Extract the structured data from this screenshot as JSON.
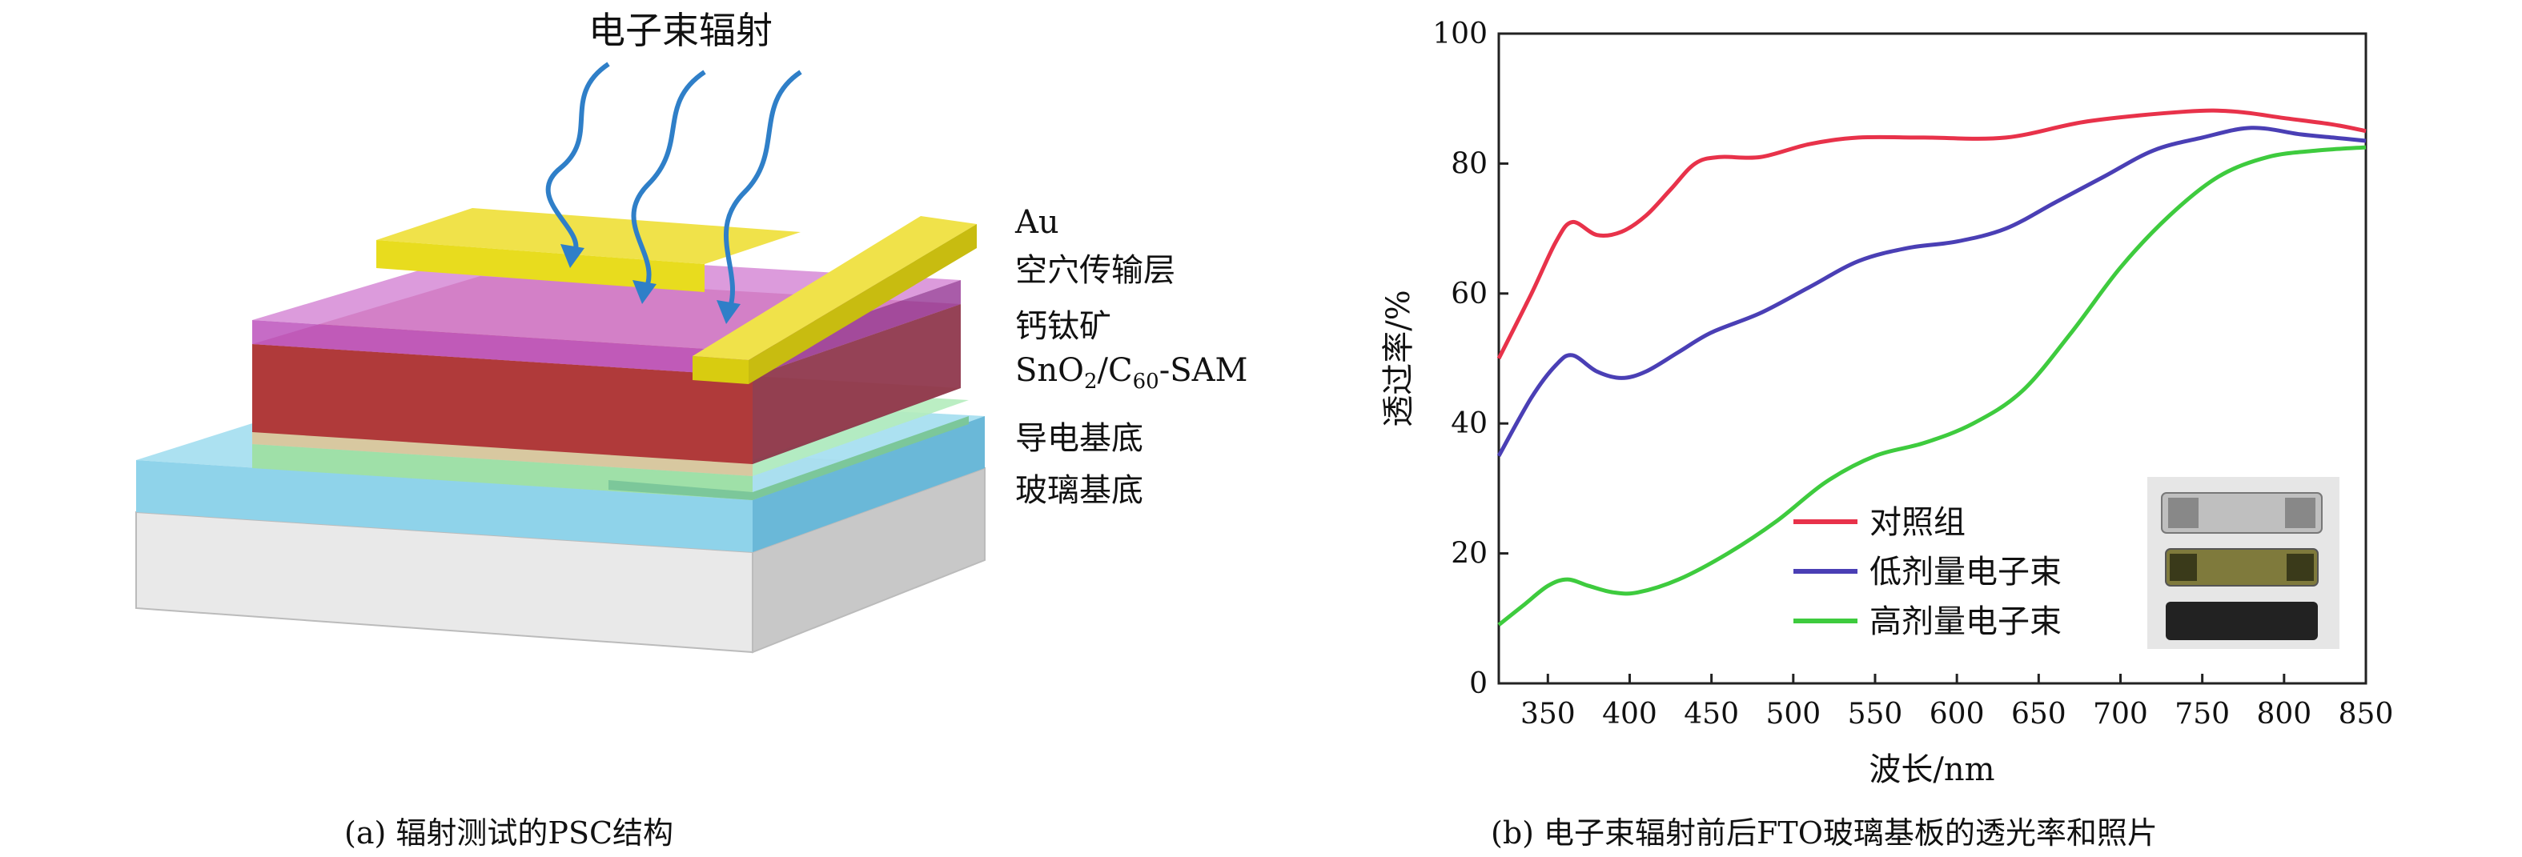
{
  "figure": {
    "left": {
      "irradiation_label": "电子束辐射",
      "layers": [
        {
          "label": "Au",
          "color": "#e8dc1e"
        },
        {
          "label": "空穴传输层",
          "color": "#c46cc8"
        },
        {
          "label": "钙钛矿",
          "color": "#a03a3a"
        },
        {
          "label_parts": [
            "SnO",
            "2",
            "/C",
            "60",
            "-SAM"
          ],
          "color": "#d8c8a0"
        },
        {
          "label": "导电基底",
          "color": "#8fd6a0"
        },
        {
          "label": "玻璃基底",
          "color": "#7cc8e0"
        }
      ],
      "caption": "(a) 辐射测试的PSC结构"
    },
    "right": {
      "caption": "(b) 电子束辐射前后FTO玻璃基板的透光率和照片"
    }
  },
  "chart_data": {
    "type": "line",
    "xlabel": "波长/nm",
    "ylabel": "透过率/%",
    "xlim": [
      320,
      850
    ],
    "ylim": [
      0,
      100
    ],
    "xticks": [
      "350",
      "400",
      "450",
      "500",
      "550",
      "600",
      "650",
      "700",
      "750",
      "800",
      "850"
    ],
    "yticks": [
      "0",
      "20",
      "40",
      "60",
      "80",
      "100"
    ],
    "grid": false,
    "legend_position": "bottom-right",
    "series": [
      {
        "name": "对照组",
        "color": "#e8324a",
        "x": [
          320,
          340,
          355,
          365,
          380,
          395,
          410,
          425,
          440,
          455,
          480,
          510,
          540,
          580,
          630,
          680,
          740,
          770,
          800,
          830,
          850
        ],
        "y": [
          50,
          60,
          68,
          71,
          69,
          69.5,
          72,
          76,
          80,
          81,
          81,
          83,
          84,
          84,
          84,
          86.5,
          88,
          88,
          87,
          86,
          85
        ]
      },
      {
        "name": "低剂量电子束",
        "color": "#4a3fb5",
        "x": [
          320,
          340,
          355,
          365,
          380,
          395,
          410,
          430,
          450,
          480,
          510,
          540,
          570,
          600,
          630,
          660,
          690,
          720,
          750,
          780,
          810,
          830,
          850
        ],
        "y": [
          35,
          44,
          49,
          50.5,
          48,
          47,
          48,
          51,
          54,
          57,
          61,
          65,
          67,
          68,
          70,
          74,
          78,
          82,
          84,
          85.5,
          84.5,
          84,
          83.5
        ]
      },
      {
        "name": "高剂量电子束",
        "color": "#3ecb3e",
        "x": [
          320,
          335,
          350,
          362,
          375,
          390,
          405,
          430,
          460,
          490,
          520,
          550,
          580,
          610,
          640,
          670,
          700,
          730,
          760,
          790,
          820,
          850
        ],
        "y": [
          9,
          12,
          15,
          16,
          15,
          14,
          14,
          16,
          20,
          25,
          31,
          35,
          37,
          40,
          45,
          54,
          64,
          72,
          78,
          81,
          82,
          82.5
        ]
      }
    ],
    "inset_photo": {
      "present": true,
      "description_samples": 3
    }
  }
}
